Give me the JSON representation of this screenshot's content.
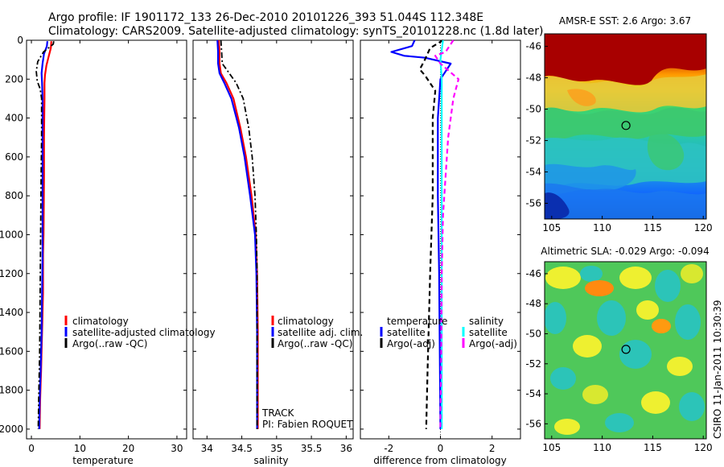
{
  "header": {
    "line1": "Argo profile: IF 1901172_133 26-Dec-2010 20101226_393 51.044S 112.348E",
    "line2": "Climatology: CARS2009. Satellite-adjusted climatology: synTS_20101228.nc (1.8d later)"
  },
  "side_label": "CSIRO 11-Jan-2011 10:30:39",
  "colors": {
    "climatology": "#ff0000",
    "satellite": "#0000ff",
    "argo": "#000000",
    "sal_satellite": "#00ffff",
    "sal_argo": "#ff00ff"
  },
  "chart_data": [
    {
      "type": "line",
      "xlabel": "temperature",
      "xlim": [
        -1,
        32
      ],
      "ylim": [
        0,
        2050
      ],
      "xticks": [
        0,
        10,
        20,
        30
      ],
      "yticks": [
        0,
        200,
        400,
        600,
        800,
        1000,
        1200,
        1400,
        1600,
        1800,
        2000
      ],
      "series": [
        {
          "name": "climatology",
          "color": "#ff0000",
          "dash": "",
          "width": 2.2,
          "points": [
            [
              4.1,
              5
            ],
            [
              4.0,
              40
            ],
            [
              3.6,
              80
            ],
            [
              3.1,
              130
            ],
            [
              2.8,
              180
            ],
            [
              2.7,
              220
            ],
            [
              2.7,
              300
            ],
            [
              2.6,
              500
            ],
            [
              2.6,
              700
            ],
            [
              2.5,
              1000
            ],
            [
              2.4,
              1100
            ],
            [
              2.4,
              1300
            ],
            [
              2.2,
              1500
            ],
            [
              2.0,
              1700
            ],
            [
              1.8,
              1850
            ],
            [
              1.7,
              2000
            ]
          ]
        },
        {
          "name": "satellite-adjusted climatology",
          "color": "#0000ff",
          "dash": "",
          "width": 2.2,
          "points": [
            [
              3.3,
              5
            ],
            [
              3.2,
              30
            ],
            [
              2.6,
              70
            ],
            [
              2.3,
              120
            ],
            [
              2.1,
              170
            ],
            [
              2.2,
              220
            ],
            [
              2.3,
              300
            ],
            [
              2.3,
              500
            ],
            [
              2.3,
              700
            ],
            [
              2.3,
              900
            ],
            [
              2.3,
              1100
            ],
            [
              2.2,
              1300
            ],
            [
              2.1,
              1500
            ],
            [
              1.9,
              1700
            ],
            [
              1.7,
              1850
            ],
            [
              1.6,
              2000
            ]
          ]
        },
        {
          "name": "Argo(..raw -QC)",
          "color": "#000000",
          "dash": "7,3,2,3",
          "width": 1.8,
          "points": [
            [
              4.6,
              5
            ],
            [
              4.5,
              20
            ],
            [
              2.5,
              60
            ],
            [
              1.3,
              110
            ],
            [
              1.0,
              160
            ],
            [
              1.2,
              210
            ],
            [
              1.8,
              250
            ],
            [
              2.1,
              300
            ],
            [
              2.1,
              500
            ],
            [
              2.0,
              700
            ],
            [
              1.9,
              1000
            ],
            [
              1.8,
              1300
            ],
            [
              1.7,
              1600
            ],
            [
              1.5,
              1850
            ],
            [
              1.4,
              2000
            ]
          ]
        }
      ],
      "legend": [
        "climatology",
        "satellite-adjusted climatology",
        "Argo(..raw -QC)"
      ]
    },
    {
      "type": "line",
      "xlabel": "salinity",
      "xlim": [
        33.8,
        36.1
      ],
      "ylim": [
        0,
        2050
      ],
      "xticks": [
        34,
        34.5,
        35,
        35.5,
        36
      ],
      "xtick_labels": [
        "34",
        "34.5",
        "35",
        "35.5",
        "36"
      ],
      "yticks": [
        0,
        200,
        400,
        600,
        800,
        1000,
        1200,
        1400,
        1600,
        1800,
        2000
      ],
      "series": [
        {
          "name": "climatology",
          "color": "#ff0000",
          "dash": "",
          "width": 2.2,
          "points": [
            [
              34.17,
              0
            ],
            [
              34.18,
              60
            ],
            [
              34.18,
              120
            ],
            [
              34.2,
              170
            ],
            [
              34.28,
              220
            ],
            [
              34.38,
              300
            ],
            [
              34.48,
              450
            ],
            [
              34.56,
              600
            ],
            [
              34.64,
              800
            ],
            [
              34.7,
              1000
            ],
            [
              34.72,
              1200
            ],
            [
              34.73,
              1500
            ],
            [
              34.73,
              1800
            ],
            [
              34.73,
              2000
            ]
          ]
        },
        {
          "name": "satellite adj. clim.",
          "color": "#0000ff",
          "dash": "",
          "width": 2.2,
          "points": [
            [
              34.15,
              0
            ],
            [
              34.16,
              60
            ],
            [
              34.16,
              120
            ],
            [
              34.18,
              170
            ],
            [
              34.25,
              220
            ],
            [
              34.35,
              300
            ],
            [
              34.46,
              450
            ],
            [
              34.54,
              600
            ],
            [
              34.62,
              800
            ],
            [
              34.69,
              1000
            ],
            [
              34.71,
              1200
            ],
            [
              34.72,
              1500
            ],
            [
              34.72,
              1800
            ],
            [
              34.72,
              2000
            ]
          ]
        },
        {
          "name": "Argo(..raw -QC)",
          "color": "#000000",
          "dash": "7,3,2,3",
          "width": 1.8,
          "points": [
            [
              34.2,
              0
            ],
            [
              34.21,
              60
            ],
            [
              34.22,
              120
            ],
            [
              34.3,
              160
            ],
            [
              34.42,
              220
            ],
            [
              34.52,
              300
            ],
            [
              34.6,
              450
            ],
            [
              34.65,
              600
            ],
            [
              34.69,
              800
            ],
            [
              34.71,
              1000
            ],
            [
              34.72,
              1200
            ],
            [
              34.72,
              1500
            ],
            [
              34.72,
              1800
            ],
            [
              34.72,
              2000
            ]
          ]
        }
      ],
      "legend": [
        "climatology",
        "satellite adj. clim.",
        "Argo(..raw -QC)"
      ],
      "annotations": [
        "TRACK",
        "PI: Fabien ROQUET"
      ]
    },
    {
      "type": "line",
      "xlabel": "difference from climatology",
      "xlim": [
        -3.1,
        3.1
      ],
      "ylim": [
        0,
        2050
      ],
      "xticks": [
        -2,
        0,
        2
      ],
      "yticks": [
        0,
        200,
        400,
        600,
        800,
        1000,
        1200,
        1400,
        1600,
        1800,
        2000
      ],
      "series": [
        {
          "name": "temperature satellite",
          "color": "#0000ff",
          "dash": "",
          "width": 2.2,
          "points": [
            [
              -1.0,
              0
            ],
            [
              -1.1,
              30
            ],
            [
              -1.9,
              60
            ],
            [
              -1.4,
              80
            ],
            [
              -0.6,
              90
            ],
            [
              0.4,
              120
            ],
            [
              0.0,
              200
            ],
            [
              -0.1,
              400
            ],
            [
              -0.1,
              800
            ],
            [
              -0.05,
              1200
            ],
            [
              0.0,
              2000
            ]
          ]
        },
        {
          "name": "temperature Argo(-adj)",
          "color": "#000000",
          "dash": "6,4",
          "width": 2.2,
          "points": [
            [
              0.1,
              0
            ],
            [
              -0.4,
              40
            ],
            [
              -0.6,
              100
            ],
            [
              -0.8,
              150
            ],
            [
              -0.6,
              180
            ],
            [
              -0.2,
              260
            ],
            [
              -0.3,
              400
            ],
            [
              -0.3,
              800
            ],
            [
              -0.4,
              1200
            ],
            [
              -0.5,
              1700
            ],
            [
              -0.55,
              2000
            ]
          ]
        },
        {
          "name": "salinity satellite",
          "color": "#00ffff",
          "dash": "",
          "width": 2.2,
          "points": [
            [
              0.1,
              0
            ],
            [
              0.0,
              100
            ],
            [
              0.05,
              200
            ],
            [
              0.05,
              600
            ],
            [
              0.05,
              1000
            ],
            [
              0.05,
              1500
            ],
            [
              0.05,
              2000
            ]
          ]
        },
        {
          "name": "salinity Argo(-adj)",
          "color": "#ff00ff",
          "dash": "6,4",
          "width": 2.2,
          "points": [
            [
              0.5,
              0
            ],
            [
              0.2,
              60
            ],
            [
              -0.2,
              80
            ],
            [
              0.0,
              120
            ],
            [
              0.7,
              200
            ],
            [
              0.5,
              300
            ],
            [
              0.3,
              500
            ],
            [
              0.2,
              700
            ],
            [
              0.1,
              900
            ],
            [
              0.05,
              1200
            ],
            [
              0.03,
              1600
            ],
            [
              0.0,
              2000
            ]
          ]
        }
      ],
      "legend_groups": [
        {
          "title": "temperature",
          "items": [
            "satellite",
            "Argo(-adj)"
          ]
        },
        {
          "title": "salinity",
          "items": [
            "satellite",
            "Argo(-adj)"
          ]
        }
      ]
    },
    {
      "type": "heatmap",
      "title": "AMSR-E SST: 2.6 Argo: 3.67",
      "xlim": [
        104.3,
        120.3
      ],
      "ylim": [
        -57.0,
        -45.2
      ],
      "xticks": [
        105,
        110,
        115,
        120
      ],
      "yticks": [
        -46,
        -48,
        -50,
        -52,
        -54,
        -56
      ],
      "argo_position": [
        112.35,
        -51.04
      ]
    },
    {
      "type": "heatmap",
      "title": "Altimetric SLA: -0.029 Argo: -0.094",
      "xlim": [
        104.3,
        120.3
      ],
      "ylim": [
        -57.0,
        -45.2
      ],
      "xticks": [
        105,
        110,
        115,
        120
      ],
      "yticks": [
        -46,
        -48,
        -50,
        -52,
        -54,
        -56
      ],
      "argo_position": [
        112.35,
        -51.04
      ]
    }
  ]
}
